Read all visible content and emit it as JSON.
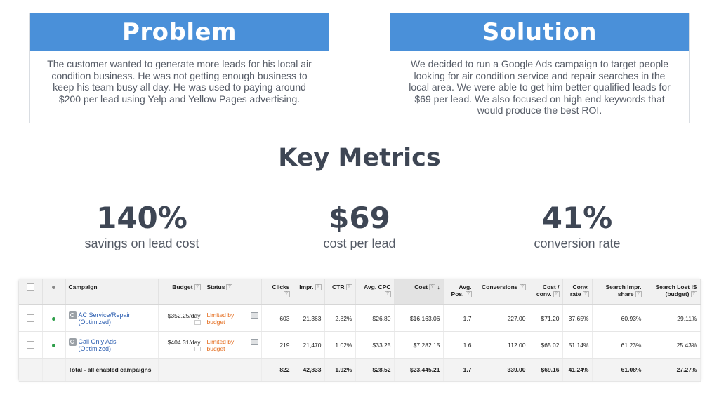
{
  "problem": {
    "title": "Problem",
    "body": "The customer wanted to generate more leads for his local air condition business. He was not getting enough business to keep his team busy all day. He was used to paying around $200 per lead using Yelp and Yellow Pages advertising."
  },
  "solution": {
    "title": "Solution",
    "body": "We decided to run a Google Ads campaign to target people looking for air condition service and repair searches in the local area. We were able to get him better qualified leads for $69 per lead. We also focused on high end keywords that would produce the best ROI."
  },
  "key_metrics": {
    "title": "Key Metrics",
    "items": [
      {
        "value": "140%",
        "label": "savings on lead cost"
      },
      {
        "value": "$69",
        "label": "cost per lead"
      },
      {
        "value": "41%",
        "label": "conversion rate"
      }
    ]
  },
  "table": {
    "headers": {
      "campaign": "Campaign",
      "budget": "Budget",
      "status": "Status",
      "clicks": "Clicks",
      "impr": "Impr.",
      "ctr": "CTR",
      "avg_cpc": "Avg. CPC",
      "cost": "Cost",
      "avg_pos": "Avg. Pos.",
      "conversions": "Conversions",
      "cost_conv": "Cost / conv.",
      "conv_rate": "Conv. rate",
      "search_impr_share": "Search Impr. share",
      "search_lost_is": "Search Lost IS (budget)"
    },
    "rows": [
      {
        "campaign": "AC Service/Repair (Optimized)",
        "budget": "$352.25/day",
        "status": "Limited by budget",
        "clicks": "603",
        "impr": "21,363",
        "ctr": "2.82%",
        "avg_cpc": "$26.80",
        "cost": "$16,163.06",
        "avg_pos": "1.7",
        "conversions": "227.00",
        "cost_conv": "$71.20",
        "conv_rate": "37.65%",
        "search_impr_share": "60.93%",
        "search_lost_is": "29.11%"
      },
      {
        "campaign": "Call Only Ads (Optimized)",
        "budget": "$404.31/day",
        "status": "Limited by budget",
        "clicks": "219",
        "impr": "21,470",
        "ctr": "1.02%",
        "avg_cpc": "$33.25",
        "cost": "$7,282.15",
        "avg_pos": "1.6",
        "conversions": "112.00",
        "cost_conv": "$65.02",
        "conv_rate": "51.14%",
        "search_impr_share": "61.23%",
        "search_lost_is": "25.43%"
      }
    ],
    "total": {
      "label": "Total - all enabled campaigns",
      "clicks": "822",
      "impr": "42,833",
      "ctr": "1.92%",
      "avg_cpc": "$28.52",
      "cost": "$23,445.21",
      "avg_pos": "1.7",
      "conversions": "339.00",
      "cost_conv": "$69.16",
      "conv_rate": "41.24%",
      "search_impr_share": "61.08%",
      "search_lost_is": "27.27%"
    },
    "help_glyph": "?",
    "sort_glyph": "↓",
    "colors": {
      "header_blue": "#4a90d9",
      "link_blue": "#2a5db0",
      "status_orange": "#e46c1d",
      "enabled_green": "#2e9e4a"
    }
  }
}
